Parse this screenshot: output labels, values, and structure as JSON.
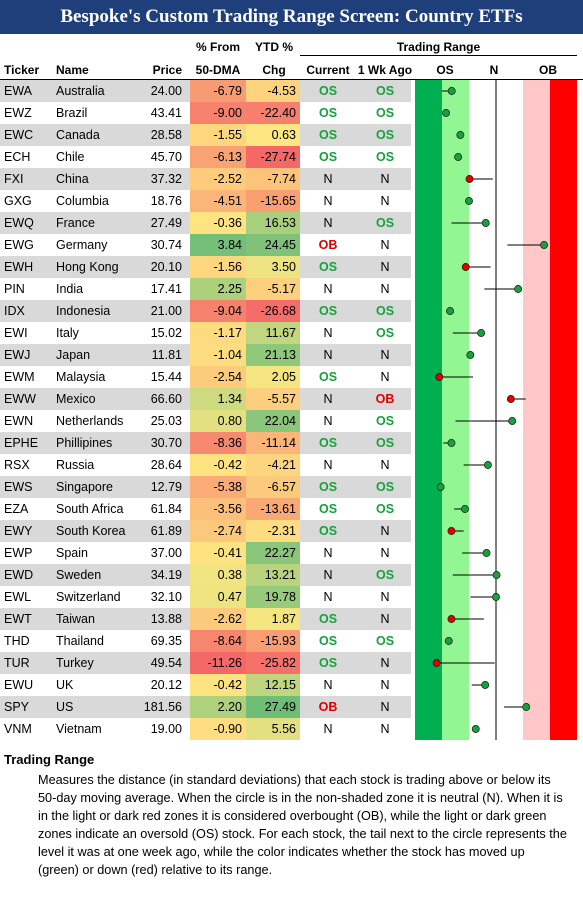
{
  "title": "Bespoke's Custom Trading Range Screen: Country ETFs",
  "headers": {
    "ticker": "Ticker",
    "name": "Name",
    "price": "Price",
    "from50_line1": "% From",
    "from50_line2": "50-DMA",
    "ytd_line1": "YTD %",
    "ytd_line2": "Chg",
    "trading_range": "Trading Range",
    "current": "Current",
    "wk_ago": "1 Wk Ago",
    "os": "OS",
    "n": "N",
    "ob": "OB"
  },
  "colors": {
    "title_bg": "#1f3f7a",
    "dark_green": "#00b050",
    "light_green": "#92f792",
    "light_red": "#ffc7c7",
    "dark_red": "#ff0000",
    "up": "#17a13c",
    "down": "#e00000"
  },
  "chart_data": {
    "type": "table",
    "range_axis": {
      "min": -3,
      "max": 3
    },
    "rows": [
      {
        "ticker": "EWA",
        "name": "Australia",
        "price": "24.00",
        "from50": "-6.79",
        "ytd": "-4.53",
        "current": "OS",
        "wk_ago": "OS",
        "range": -1.64,
        "prev": -2.0
      },
      {
        "ticker": "EWZ",
        "name": "Brazil",
        "price": "43.41",
        "from50": "-9.00",
        "ytd": "-22.40",
        "current": "OS",
        "wk_ago": "OS",
        "range": -1.85,
        "prev": -1.85
      },
      {
        "ticker": "EWC",
        "name": "Canada",
        "price": "28.58",
        "from50": "-1.55",
        "ytd": "0.63",
        "current": "OS",
        "wk_ago": "OS",
        "range": -1.32,
        "prev": -1.45
      },
      {
        "ticker": "ECH",
        "name": "Chile",
        "price": "45.70",
        "from50": "-6.13",
        "ytd": "-27.74",
        "current": "OS",
        "wk_ago": "OS",
        "range": -1.4,
        "prev": -1.55
      },
      {
        "ticker": "FXI",
        "name": "China",
        "price": "37.32",
        "from50": "-2.52",
        "ytd": "-7.74",
        "current": "N",
        "wk_ago": "N",
        "range": -0.98,
        "prev": -0.12
      },
      {
        "ticker": "GXG",
        "name": "Columbia",
        "price": "18.76",
        "from50": "-4.51",
        "ytd": "-15.65",
        "current": "N",
        "wk_ago": "N",
        "range": -1.0,
        "prev": -1.0
      },
      {
        "ticker": "EWQ",
        "name": "France",
        "price": "27.49",
        "from50": "-0.36",
        "ytd": "16.53",
        "current": "N",
        "wk_ago": "OS",
        "range": -0.38,
        "prev": -1.65
      },
      {
        "ticker": "EWG",
        "name": "Germany",
        "price": "30.74",
        "from50": "3.84",
        "ytd": "24.45",
        "current": "OB",
        "wk_ago": "N",
        "range": 1.78,
        "prev": 0.42
      },
      {
        "ticker": "EWH",
        "name": "Hong Kong",
        "price": "20.10",
        "from50": "-1.56",
        "ytd": "3.50",
        "current": "OS",
        "wk_ago": "N",
        "range": -1.12,
        "prev": -0.2
      },
      {
        "ticker": "PIN",
        "name": "India",
        "price": "17.41",
        "from50": "2.25",
        "ytd": "-5.17",
        "current": "N",
        "wk_ago": "N",
        "range": 0.82,
        "prev": -0.43
      },
      {
        "ticker": "IDX",
        "name": "Indonesia",
        "price": "21.00",
        "from50": "-9.04",
        "ytd": "-26.68",
        "current": "OS",
        "wk_ago": "OS",
        "range": -1.7,
        "prev": -1.85
      },
      {
        "ticker": "EWI",
        "name": "Italy",
        "price": "15.02",
        "from50": "-1.17",
        "ytd": "11.67",
        "current": "N",
        "wk_ago": "OS",
        "range": -0.55,
        "prev": -1.6
      },
      {
        "ticker": "EWJ",
        "name": "Japan",
        "price": "11.81",
        "from50": "-1.04",
        "ytd": "21.13",
        "current": "N",
        "wk_ago": "N",
        "range": -0.95,
        "prev": -0.95
      },
      {
        "ticker": "EWM",
        "name": "Malaysia",
        "price": "15.44",
        "from50": "-2.54",
        "ytd": "2.05",
        "current": "OS",
        "wk_ago": "N",
        "range": -2.1,
        "prev": -0.85
      },
      {
        "ticker": "EWW",
        "name": "Mexico",
        "price": "66.60",
        "from50": "1.34",
        "ytd": "-5.57",
        "current": "N",
        "wk_ago": "OB",
        "range": 0.55,
        "prev": 1.1
      },
      {
        "ticker": "EWN",
        "name": "Netherlands",
        "price": "25.03",
        "from50": "0.80",
        "ytd": "22.04",
        "current": "N",
        "wk_ago": "OS",
        "range": 0.6,
        "prev": -1.5
      },
      {
        "ticker": "EPHE",
        "name": "Phillipines",
        "price": "30.70",
        "from50": "-8.36",
        "ytd": "-11.14",
        "current": "OS",
        "wk_ago": "OS",
        "range": -1.65,
        "prev": -1.95
      },
      {
        "ticker": "RSX",
        "name": "Russia",
        "price": "28.64",
        "from50": "-0.42",
        "ytd": "-4.21",
        "current": "N",
        "wk_ago": "N",
        "range": -0.3,
        "prev": -1.2
      },
      {
        "ticker": "EWS",
        "name": "Singapore",
        "price": "12.79",
        "from50": "-5.38",
        "ytd": "-6.57",
        "current": "OS",
        "wk_ago": "OS",
        "range": -2.05,
        "prev": -2.05
      },
      {
        "ticker": "EZA",
        "name": "South Africa",
        "price": "61.84",
        "from50": "-3.56",
        "ytd": "-13.61",
        "current": "OS",
        "wk_ago": "OS",
        "range": -1.15,
        "prev": -1.55
      },
      {
        "ticker": "EWY",
        "name": "South Korea",
        "price": "61.89",
        "from50": "-2.74",
        "ytd": "-2.31",
        "current": "OS",
        "wk_ago": "N",
        "range": -1.65,
        "prev": -1.2
      },
      {
        "ticker": "EWP",
        "name": "Spain",
        "price": "37.00",
        "from50": "-0.41",
        "ytd": "22.27",
        "current": "N",
        "wk_ago": "N",
        "range": -0.35,
        "prev": -1.25
      },
      {
        "ticker": "EWD",
        "name": "Sweden",
        "price": "34.19",
        "from50": "0.38",
        "ytd": "13.21",
        "current": "N",
        "wk_ago": "OS",
        "range": 0.02,
        "prev": -1.6
      },
      {
        "ticker": "EWL",
        "name": "Switzerland",
        "price": "32.10",
        "from50": "0.47",
        "ytd": "19.78",
        "current": "N",
        "wk_ago": "N",
        "range": 0.0,
        "prev": -0.95
      },
      {
        "ticker": "EWT",
        "name": "Taiwan",
        "price": "13.88",
        "from50": "-2.62",
        "ytd": "1.87",
        "current": "OS",
        "wk_ago": "N",
        "range": -1.65,
        "prev": -0.45
      },
      {
        "ticker": "THD",
        "name": "Thailand",
        "price": "69.35",
        "from50": "-8.64",
        "ytd": "-15.93",
        "current": "OS",
        "wk_ago": "OS",
        "range": -1.75,
        "prev": -1.75
      },
      {
        "ticker": "TUR",
        "name": "Turkey",
        "price": "49.54",
        "from50": "-11.26",
        "ytd": "-25.82",
        "current": "OS",
        "wk_ago": "N",
        "range": -2.2,
        "prev": -0.05
      },
      {
        "ticker": "EWU",
        "name": "UK",
        "price": "20.12",
        "from50": "-0.42",
        "ytd": "12.15",
        "current": "N",
        "wk_ago": "N",
        "range": -0.4,
        "prev": -0.9
      },
      {
        "ticker": "SPY",
        "name": "US",
        "price": "181.56",
        "from50": "2.20",
        "ytd": "27.49",
        "current": "OB",
        "wk_ago": "N",
        "range": 1.12,
        "prev": 0.3
      },
      {
        "ticker": "VNM",
        "name": "Vietnam",
        "price": "19.00",
        "from50": "-0.90",
        "ytd": "5.56",
        "current": "N",
        "wk_ago": "N",
        "range": -0.75,
        "prev": -0.75
      }
    ]
  },
  "notes": {
    "heading": "Trading Range",
    "body": "Measures the distance (in standard deviations) that each stock is trading above or below its 50-day moving average.  When the circle is in the non-shaded zone it is neutral (N).  When it is in the light or dark red zones it is considered overbought (OB), while the light or dark green zones indicate an oversold (OS) stock.  For each stock, the tail next to the circle represents the level it was at one week ago, while the color indicates whether the stock has moved up (green) or down (red) relative to its range."
  }
}
